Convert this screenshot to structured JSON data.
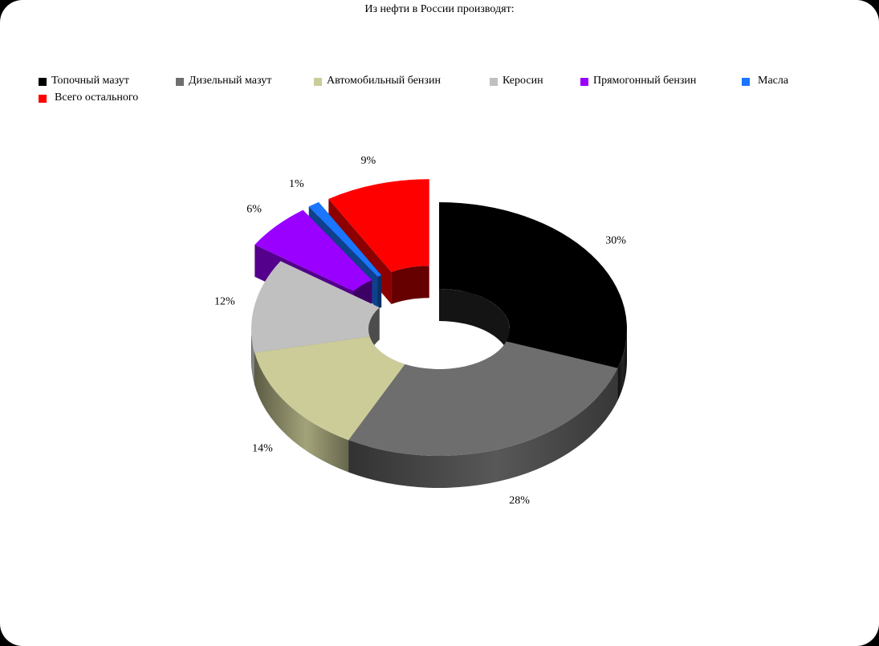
{
  "title": "Из нефти в России производят:",
  "legend": [
    "Топочный мазут",
    "Дизельный мазут",
    "Автомобильный бензин",
    "Керосин",
    "Прямогонный бензин",
    "Масла",
    "Всего остального"
  ],
  "chart_data": {
    "type": "pie",
    "style": "3d-exploded-doughnut",
    "title": "Из нефти в России производят:",
    "categories": [
      "Топочный мазут",
      "Дизельный мазут",
      "Автомобильный бензин",
      "Керосин",
      "Прямогонный бензин",
      "Масла",
      "Всего остального"
    ],
    "values": [
      30,
      28,
      14,
      12,
      6,
      1,
      9
    ],
    "labels": [
      "30%",
      "28%",
      "14%",
      "12%",
      "6%",
      "1%",
      "9%"
    ],
    "colors": [
      "#000000",
      "#6e6e6e",
      "#cccc99",
      "#c0c0c0",
      "#9900ff",
      "#1a75ff",
      "#ff0000"
    ],
    "exploded": [
      false,
      false,
      false,
      false,
      true,
      true,
      true
    ],
    "legend_position": "top"
  }
}
